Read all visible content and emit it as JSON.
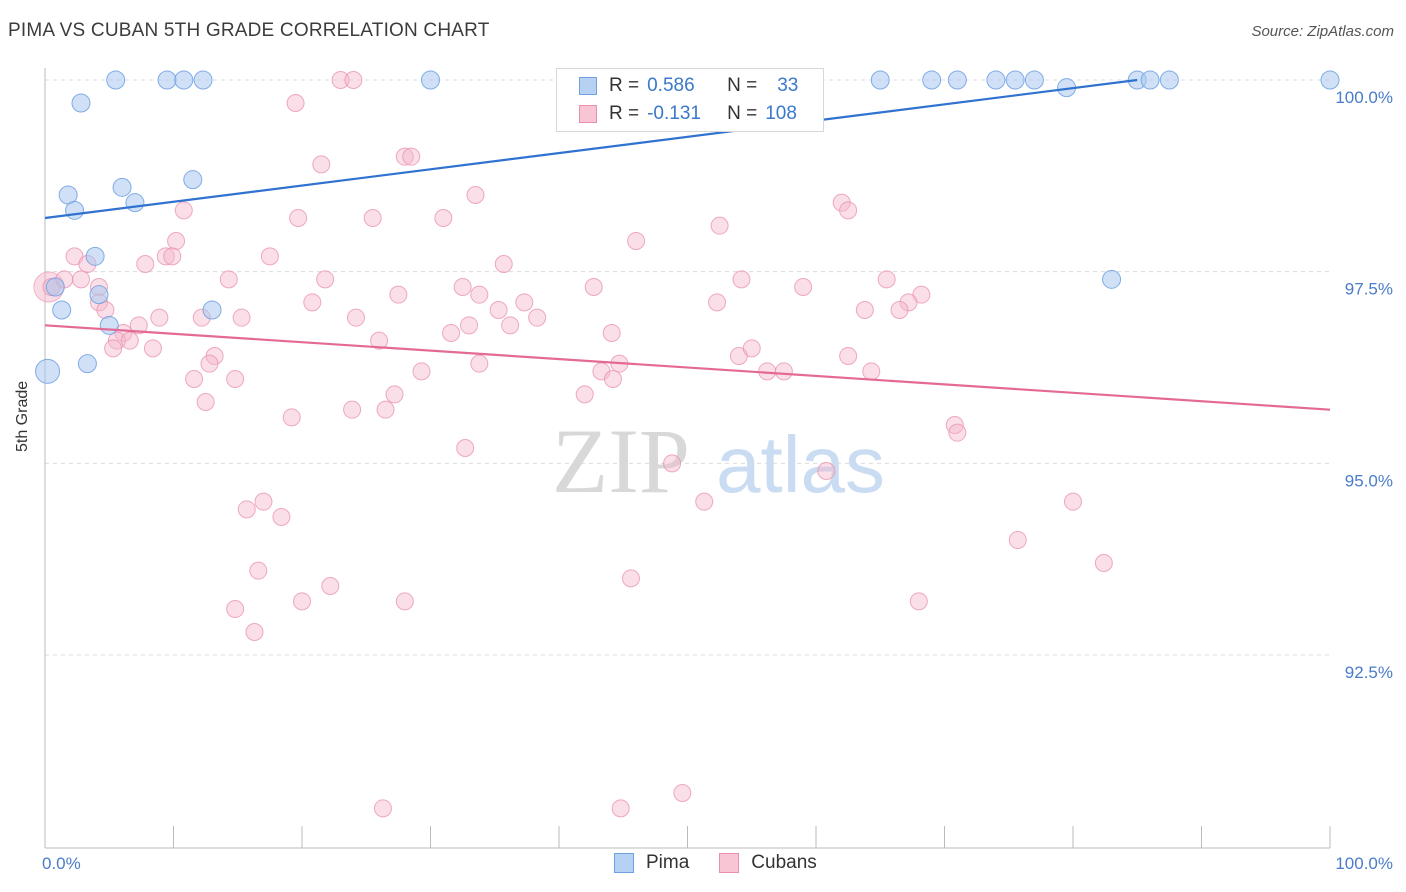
{
  "title": "PIMA VS CUBAN 5TH GRADE CORRELATION CHART",
  "source": "Source: ZipAtlas.com",
  "watermark": {
    "zip": "ZIP",
    "atlas": "atlas"
  },
  "legend": {
    "r_label": "R =",
    "n_label": "N =",
    "pima": {
      "r": "0.586",
      "n": "33"
    },
    "cubans": {
      "r": "-0.131",
      "n": "108"
    }
  },
  "bottom_legend": {
    "pima": "Pima",
    "cubans": "Cubans"
  },
  "colors": {
    "pima_fill": "#a9c8f0",
    "pima_stroke": "#6fa0e0",
    "pima_line": "#2f72d0",
    "cubans_fill": "#f5b8cb",
    "cubans_stroke": "#ea8fae",
    "cubans_line": "#e46a95",
    "axis_text": "#4a7cc9"
  },
  "chart_data": {
    "type": "scatter",
    "title": "PIMA VS CUBAN 5TH GRADE CORRELATION CHART",
    "xlabel": "",
    "ylabel": "5th Grade",
    "xlim": [
      0,
      100
    ],
    "ylim": [
      90.2,
      100.5
    ],
    "x_tick_labels": [
      "0.0%",
      "100.0%"
    ],
    "y_ticks": [
      92.5,
      95.0,
      97.5,
      100.0
    ],
    "y_tick_labels": [
      "92.5%",
      "95.0%",
      "97.5%",
      "100.0%"
    ],
    "grid": true,
    "series": [
      {
        "name": "Pima",
        "trend": [
          [
            0,
            98.2
          ],
          [
            85,
            100.0
          ]
        ],
        "points": [
          [
            5.5,
            100
          ],
          [
            9.5,
            100
          ],
          [
            10.8,
            100
          ],
          [
            12.3,
            100
          ],
          [
            30,
            100
          ],
          [
            65,
            100
          ],
          [
            69,
            100
          ],
          [
            71,
            100
          ],
          [
            74,
            100
          ],
          [
            75.5,
            100
          ],
          [
            77,
            100
          ],
          [
            79.5,
            99.9
          ],
          [
            85,
            100
          ],
          [
            86,
            100
          ],
          [
            87.5,
            100
          ],
          [
            100,
            100
          ],
          [
            2.8,
            99.7
          ],
          [
            1.8,
            98.5
          ],
          [
            2.3,
            98.3
          ],
          [
            6,
            98.6
          ],
          [
            7,
            98.4
          ],
          [
            11.5,
            98.7
          ],
          [
            3.9,
            97.7
          ],
          [
            0.8,
            97.3
          ],
          [
            1.3,
            97.0
          ],
          [
            4.2,
            97.2
          ],
          [
            5,
            96.8
          ],
          [
            13,
            97.0
          ],
          [
            3.3,
            96.3
          ],
          [
            0.2,
            96.2
          ],
          [
            83,
            97.4
          ]
        ],
        "sizes": [
          9,
          9,
          9,
          9,
          9,
          9,
          9,
          9,
          9,
          9,
          9,
          9,
          9,
          9,
          9,
          9,
          9,
          9,
          9,
          9,
          9,
          9,
          9,
          9,
          9,
          9,
          9,
          9,
          9,
          12,
          9
        ]
      },
      {
        "name": "Cubans",
        "trend": [
          [
            0,
            96.8
          ],
          [
            100,
            95.7
          ]
        ],
        "points": [
          [
            23,
            100
          ],
          [
            24,
            100
          ],
          [
            19.5,
            99.7
          ],
          [
            21.5,
            98.9
          ],
          [
            28,
            99.0
          ],
          [
            28.5,
            99.0
          ],
          [
            33.5,
            98.5
          ],
          [
            31,
            98.2
          ],
          [
            25.5,
            98.2
          ],
          [
            19.7,
            98.2
          ],
          [
            10.8,
            98.3
          ],
          [
            10.2,
            97.9
          ],
          [
            9.4,
            97.7
          ],
          [
            9.9,
            97.7
          ],
          [
            7.8,
            97.6
          ],
          [
            17.5,
            97.7
          ],
          [
            35.7,
            97.6
          ],
          [
            46,
            97.9
          ],
          [
            52.5,
            98.1
          ],
          [
            62,
            98.4
          ],
          [
            62.5,
            98.3
          ],
          [
            2.3,
            97.7
          ],
          [
            3.3,
            97.6
          ],
          [
            0.5,
            97.3
          ],
          [
            1.5,
            97.4
          ],
          [
            2.8,
            97.4
          ],
          [
            4.2,
            97.3
          ],
          [
            14.3,
            97.4
          ],
          [
            21.8,
            97.4
          ],
          [
            27.5,
            97.2
          ],
          [
            32.5,
            97.3
          ],
          [
            33.8,
            97.2
          ],
          [
            42.7,
            97.3
          ],
          [
            59,
            97.3
          ],
          [
            54.2,
            97.4
          ],
          [
            65.5,
            97.4
          ],
          [
            68.2,
            97.2
          ],
          [
            4.2,
            97.1
          ],
          [
            4.7,
            97.0
          ],
          [
            20.8,
            97.1
          ],
          [
            35.3,
            97.0
          ],
          [
            37.3,
            97.1
          ],
          [
            52.3,
            97.1
          ],
          [
            63.8,
            97.0
          ],
          [
            67.2,
            97.1
          ],
          [
            66.5,
            97.0
          ],
          [
            8.9,
            96.9
          ],
          [
            12.2,
            96.9
          ],
          [
            15.3,
            96.9
          ],
          [
            24.2,
            96.9
          ],
          [
            33.0,
            96.8
          ],
          [
            36.2,
            96.8
          ],
          [
            38.3,
            96.9
          ],
          [
            7.3,
            96.8
          ],
          [
            6.1,
            96.7
          ],
          [
            26.0,
            96.6
          ],
          [
            44.1,
            96.7
          ],
          [
            31.6,
            96.7
          ],
          [
            5.6,
            96.6
          ],
          [
            6.6,
            96.6
          ],
          [
            5.3,
            96.5
          ],
          [
            8.4,
            96.5
          ],
          [
            13.2,
            96.4
          ],
          [
            12.8,
            96.3
          ],
          [
            33.8,
            96.3
          ],
          [
            54.0,
            96.4
          ],
          [
            55.0,
            96.5
          ],
          [
            62.5,
            96.4
          ],
          [
            64.3,
            96.2
          ],
          [
            43.3,
            96.2
          ],
          [
            44.7,
            96.3
          ],
          [
            56.2,
            96.2
          ],
          [
            57.5,
            96.2
          ],
          [
            29.3,
            96.2
          ],
          [
            11.6,
            96.1
          ],
          [
            44.2,
            96.1
          ],
          [
            14.8,
            96.1
          ],
          [
            12.5,
            95.8
          ],
          [
            26.5,
            95.7
          ],
          [
            27.2,
            95.9
          ],
          [
            42,
            95.9
          ],
          [
            19.2,
            95.6
          ],
          [
            23.9,
            95.7
          ],
          [
            70.8,
            95.5
          ],
          [
            71,
            95.4
          ],
          [
            32.7,
            95.2
          ],
          [
            48.8,
            95.0
          ],
          [
            60.8,
            94.9
          ],
          [
            17.0,
            94.5
          ],
          [
            15.7,
            94.4
          ],
          [
            18.4,
            94.3
          ],
          [
            51.3,
            94.5
          ],
          [
            80.0,
            94.5
          ],
          [
            75.7,
            94.0
          ],
          [
            82.4,
            93.7
          ],
          [
            16.6,
            93.6
          ],
          [
            22.2,
            93.4
          ],
          [
            45.6,
            93.5
          ],
          [
            14.8,
            93.1
          ],
          [
            20,
            93.2
          ],
          [
            28,
            93.2
          ],
          [
            68,
            93.2
          ],
          [
            16.3,
            92.8
          ],
          [
            26.3,
            90.5
          ],
          [
            44.8,
            90.5
          ],
          [
            49.6,
            90.7
          ]
        ],
        "big_point": [
          0.3,
          97.3
        ]
      }
    ]
  }
}
